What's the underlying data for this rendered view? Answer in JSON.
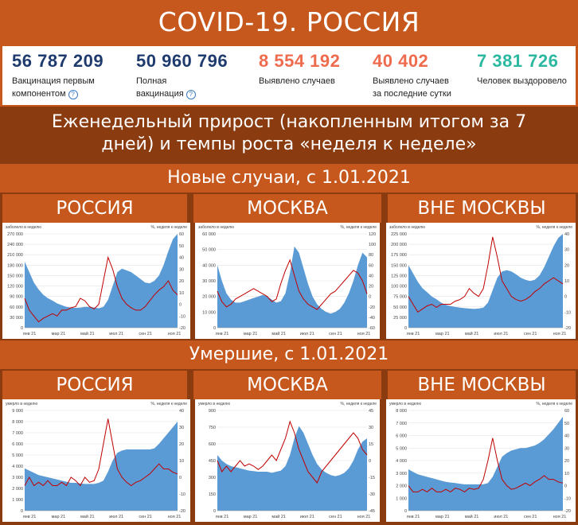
{
  "title": "COVID-19. РОССИЯ",
  "stats": [
    {
      "value": "56 787 209",
      "label1": "Вакцинация первым",
      "label2": "компонентом",
      "info": "?",
      "color": "#1f3b6e"
    },
    {
      "value": "50 960 796",
      "label1": "Полная",
      "label2": "вакцинация",
      "info": "?",
      "color": "#1f3b6e"
    },
    {
      "value": "8 554 192",
      "label1": "Выявлено случаев",
      "label2": "",
      "info": "",
      "color": "#ef6b4e"
    },
    {
      "value": "40 402",
      "label1": "Выявлено случаев",
      "label2": "за последние сутки",
      "info": "",
      "color": "#ef6b4e"
    },
    {
      "value": "7 381 726",
      "label1": "Человек выздоровело",
      "label2": "",
      "info": "",
      "color": "#2bb8a0"
    }
  ],
  "weekly": {
    "line1": "Еженедельный прирост (накопленным итогом за 7",
    "line2": "дней) и темпы роста «неделя к неделе»"
  },
  "section_cases": "Новые случаи, с 1.01.2021",
  "section_deaths": "Умершие, с 1.01.2021",
  "regions": [
    "РОССИЯ",
    "МОСКВА",
    "ВНЕ МОСКВЫ"
  ],
  "colors": {
    "area": "#5b9bd5",
    "line": "#c00000",
    "accent": "#c6581d"
  },
  "chart_data": [
    {
      "type": "area",
      "title": "РОССИЯ",
      "ylabel": "заболело в неделю",
      "y2label": "%, неделя к неделе",
      "yticks": [
        "0",
        "30 000",
        "60 000",
        "90 000",
        "120 000",
        "150 000",
        "180 000",
        "210 000",
        "240 000",
        "270 000"
      ],
      "ylim": [
        0,
        270000
      ],
      "y2ticks": [
        "-20",
        "-10",
        "0",
        "10",
        "20",
        "30",
        "40",
        "50",
        "60"
      ],
      "y2lim": [
        -20,
        60
      ],
      "xticks": [
        "янв 21",
        "мар 21",
        "май 21",
        "июл 21",
        "сен 21",
        "ноя 21"
      ],
      "series": [
        {
          "values": [
            190000,
            160000,
            130000,
            110000,
            95000,
            85000,
            78000,
            70000,
            65000,
            60000,
            58000,
            57000,
            58000,
            60000,
            60000,
            58000,
            56000,
            60000,
            80000,
            120000,
            160000,
            170000,
            165000,
            160000,
            150000,
            140000,
            130000,
            128000,
            135000,
            150000,
            180000,
            220000,
            255000,
            270000
          ]
        },
        {
          "values": [
            5,
            -5,
            -10,
            -15,
            -12,
            -10,
            -8,
            -10,
            -5,
            -5,
            -3,
            -2,
            5,
            3,
            -2,
            -4,
            0,
            20,
            40,
            30,
            15,
            5,
            0,
            -3,
            -5,
            -5,
            -2,
            3,
            8,
            12,
            15,
            20,
            12,
            8
          ]
        }
      ]
    },
    {
      "type": "area",
      "title": "МОСКВА",
      "ylabel": "заболело в неделю",
      "y2label": "%, неделя к неделе",
      "yticks": [
        "0",
        "10 000",
        "20 000",
        "30 000",
        "40 000",
        "50 000",
        "60 000"
      ],
      "ylim": [
        0,
        60000
      ],
      "y2ticks": [
        "-60",
        "-40",
        "-20",
        "0",
        "20",
        "40",
        "60",
        "80",
        "100",
        "120"
      ],
      "y2lim": [
        -60,
        120
      ],
      "xticks": [
        "янв 21",
        "мар 21",
        "май 21",
        "июл 21",
        "сен 21",
        "ноя 21"
      ],
      "series": [
        {
          "values": [
            40000,
            30000,
            22000,
            18000,
            16000,
            16000,
            17000,
            18000,
            19000,
            20000,
            21000,
            20000,
            18000,
            16000,
            17000,
            22000,
            35000,
            52000,
            48000,
            38000,
            28000,
            20000,
            15000,
            12000,
            10000,
            9000,
            10000,
            12000,
            16000,
            22000,
            30000,
            40000,
            48000,
            45000
          ]
        },
        {
          "values": [
            10,
            -10,
            -20,
            -15,
            -5,
            0,
            5,
            10,
            15,
            10,
            5,
            0,
            -10,
            -5,
            25,
            50,
            70,
            40,
            10,
            -5,
            -15,
            -20,
            -25,
            -15,
            -5,
            5,
            10,
            20,
            30,
            40,
            50,
            45,
            30,
            5
          ]
        }
      ]
    },
    {
      "type": "area",
      "title": "ВНЕ МОСКВЫ",
      "ylabel": "заболело в неделю",
      "y2label": "%, неделя к неделе",
      "yticks": [
        "0",
        "25 000",
        "50 000",
        "75 000",
        "100 000",
        "125 000",
        "150 000",
        "175 000",
        "200 000",
        "225 000"
      ],
      "ylim": [
        0,
        225000
      ],
      "y2ticks": [
        "-20",
        "-10",
        "0",
        "10",
        "20",
        "30",
        "40"
      ],
      "y2lim": [
        -20,
        40
      ],
      "xticks": [
        "янв 21",
        "мар 21",
        "май 21",
        "июл 21",
        "сен 21",
        "ноя 21"
      ],
      "series": [
        {
          "values": [
            150000,
            130000,
            110000,
            95000,
            85000,
            75000,
            68000,
            60000,
            55000,
            52000,
            50000,
            48000,
            47000,
            46000,
            45000,
            46000,
            48000,
            60000,
            90000,
            120000,
            135000,
            138000,
            135000,
            128000,
            120000,
            115000,
            112000,
            115000,
            125000,
            145000,
            170000,
            195000,
            215000,
            225000
          ]
        },
        {
          "values": [
            0,
            -5,
            -10,
            -8,
            -6,
            -5,
            -7,
            -5,
            -5,
            -5,
            -3,
            -2,
            0,
            5,
            2,
            0,
            5,
            20,
            38,
            25,
            10,
            5,
            0,
            -2,
            -3,
            -2,
            0,
            3,
            5,
            8,
            10,
            12,
            10,
            8
          ]
        }
      ]
    },
    {
      "type": "area",
      "title": "РОССИЯ",
      "ylabel": "умерло в неделю",
      "y2label": "%, неделя к неделе",
      "yticks": [
        "0",
        "1 000",
        "2 000",
        "3 000",
        "4 000",
        "5 000",
        "6 000",
        "7 000",
        "8 000",
        "9 000"
      ],
      "ylim": [
        0,
        9000
      ],
      "y2ticks": [
        "-20",
        "-10",
        "0",
        "10",
        "20",
        "30",
        "40"
      ],
      "y2lim": [
        -20,
        40
      ],
      "xticks": [
        "янв 21",
        "мар 21",
        "май 21",
        "июл 21",
        "сен 21",
        "ноя 21"
      ],
      "series": [
        {
          "values": [
            3800,
            3600,
            3400,
            3200,
            3100,
            3000,
            2900,
            2800,
            2700,
            2600,
            2500,
            2500,
            2450,
            2400,
            2400,
            2400,
            2500,
            2700,
            3500,
            4500,
            5200,
            5400,
            5500,
            5500,
            5500,
            5500,
            5500,
            5500,
            5600,
            6000,
            6500,
            7000,
            7500,
            8000
          ]
        },
        {
          "values": [
            -5,
            0,
            -5,
            -3,
            -5,
            -2,
            -5,
            -5,
            -3,
            -5,
            0,
            -2,
            -5,
            0,
            -3,
            -2,
            5,
            20,
            35,
            20,
            5,
            0,
            -3,
            -5,
            -3,
            -2,
            0,
            2,
            5,
            8,
            5,
            5,
            3,
            2
          ]
        }
      ]
    },
    {
      "type": "area",
      "title": "МОСКВА",
      "ylabel": "умерло в неделю",
      "y2label": "%, неделя к неделе",
      "yticks": [
        "0",
        "150",
        "300",
        "450",
        "600",
        "750",
        "900"
      ],
      "ylim": [
        0,
        900
      ],
      "y2ticks": [
        "-45",
        "-30",
        "-15",
        "0",
        "15",
        "30",
        "45"
      ],
      "y2lim": [
        -45,
        45
      ],
      "xticks": [
        "янв 21",
        "мар 21",
        "май 21",
        "июл 21",
        "сен 21",
        "ноя 21"
      ],
      "series": [
        {
          "values": [
            500,
            450,
            420,
            400,
            390,
            380,
            370,
            360,
            355,
            350,
            350,
            350,
            340,
            350,
            360,
            400,
            500,
            650,
            760,
            700,
            600,
            500,
            420,
            370,
            340,
            320,
            310,
            320,
            340,
            380,
            450,
            550,
            620,
            650
          ]
        },
        {
          "values": [
            0,
            -10,
            -5,
            -10,
            -5,
            0,
            -5,
            -3,
            -5,
            -8,
            -5,
            0,
            5,
            0,
            10,
            20,
            35,
            25,
            10,
            0,
            -10,
            -15,
            -20,
            -10,
            -5,
            0,
            5,
            10,
            15,
            20,
            25,
            20,
            10,
            5
          ]
        }
      ]
    },
    {
      "type": "area",
      "title": "ВНЕ МОСКВЫ",
      "ylabel": "умерло в неделю",
      "y2label": "%, неделя к неделе",
      "yticks": [
        "0",
        "1 000",
        "2 000",
        "3 000",
        "4 000",
        "5 000",
        "6 000",
        "7 000",
        "8 000"
      ],
      "ylim": [
        0,
        8000
      ],
      "y2ticks": [
        "-20",
        "-10",
        "0",
        "10",
        "20",
        "30",
        "40",
        "50",
        "60"
      ],
      "y2lim": [
        -20,
        60
      ],
      "xticks": [
        "янв 21",
        "мар 21",
        "май 21",
        "июл 21",
        "сен 21",
        "ноя 21"
      ],
      "series": [
        {
          "values": [
            3300,
            3100,
            2900,
            2800,
            2700,
            2600,
            2500,
            2400,
            2300,
            2250,
            2200,
            2150,
            2100,
            2100,
            2100,
            2100,
            2100,
            2200,
            2700,
            3500,
            4300,
            4600,
            4800,
            4900,
            5000,
            5000,
            5100,
            5200,
            5400,
            5700,
            6100,
            6500,
            7000,
            7500
          ]
        },
        {
          "values": [
            0,
            -5,
            -5,
            -3,
            -5,
            -2,
            -5,
            -5,
            -3,
            -5,
            -2,
            -3,
            -5,
            -2,
            -3,
            -2,
            5,
            20,
            38,
            20,
            5,
            0,
            -3,
            -2,
            0,
            2,
            0,
            3,
            5,
            8,
            5,
            5,
            3,
            2
          ]
        }
      ]
    }
  ]
}
